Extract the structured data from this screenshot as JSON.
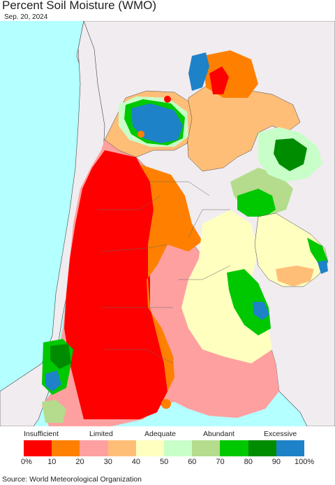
{
  "title": "Percent Soil Moisture (WMO)",
  "date": "Sep. 20, 2024",
  "legend": {
    "categories": [
      "Insufficient",
      "Limited",
      "Adequate",
      "Abundant",
      "Excessive"
    ],
    "colors": [
      "#ff0000",
      "#ff8000",
      "#ffa0a0",
      "#ffbe78",
      "#ffffc0",
      "#c8ffc8",
      "#b4dc8c",
      "#00c800",
      "#008c00",
      "#1e82c8"
    ],
    "ticks": [
      "0%",
      "10",
      "20",
      "30",
      "40",
      "50",
      "60",
      "70",
      "80",
      "90",
      "100%"
    ]
  },
  "source": "Source: World Meteorological Organization"
}
